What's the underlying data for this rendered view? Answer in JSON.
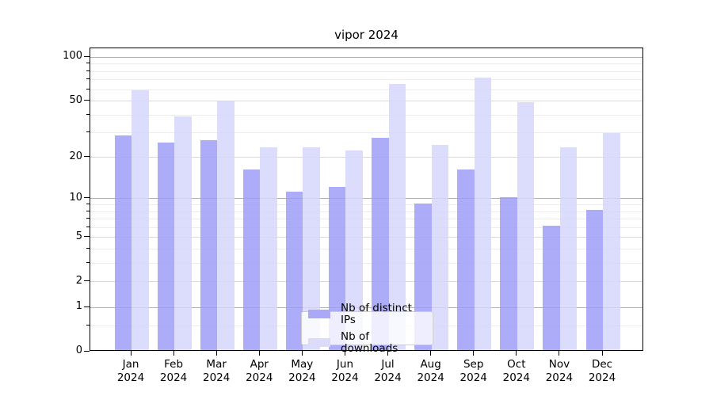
{
  "title": "vipor 2024",
  "legend": {
    "items": [
      {
        "label": "Nb of distinct IPs",
        "key": "ips"
      },
      {
        "label": "Nb of downloads",
        "key": "downloads"
      }
    ]
  },
  "colors": {
    "ips_bar": "rgba(157,157,248,0.85)",
    "downloads_bar": "rgba(214,214,251,0.85)",
    "ips_swatch": "#a9a9f8",
    "downloads_swatch": "#dcdcfa",
    "grid_decade": "#b0b0b0",
    "grid_labeled": "#d9d9d9",
    "grid_minor": "#ececec",
    "axis": "#000000"
  },
  "chart_data": {
    "type": "bar",
    "title": "vipor 2024",
    "year": "2024",
    "categories": [
      "Jan",
      "Feb",
      "Mar",
      "Apr",
      "May",
      "Jun",
      "Jul",
      "Aug",
      "Sep",
      "Oct",
      "Nov",
      "Dec"
    ],
    "series": [
      {
        "name": "Nb of distinct IPs",
        "key": "ips",
        "values": [
          28,
          25,
          26,
          16,
          11,
          12,
          27,
          9,
          16,
          10,
          6,
          8
        ]
      },
      {
        "name": "Nb of downloads",
        "key": "downloads",
        "values": [
          58,
          38,
          49,
          23,
          23,
          22,
          64,
          24,
          71,
          48,
          23,
          29
        ]
      }
    ],
    "yscale": "log1p",
    "ylim": [
      0,
      116
    ],
    "yticks_labeled": [
      0,
      1,
      2,
      5,
      10,
      20,
      50,
      100
    ],
    "yticks_decade": [
      1,
      10,
      100
    ],
    "yticks_mid": [
      2,
      5,
      20,
      50
    ],
    "yticks_minor": [
      0.5,
      3,
      4,
      6,
      7,
      8,
      9,
      30,
      40,
      60,
      70,
      80,
      90
    ],
    "grid": true,
    "legend_position": "inside-lower-center"
  }
}
